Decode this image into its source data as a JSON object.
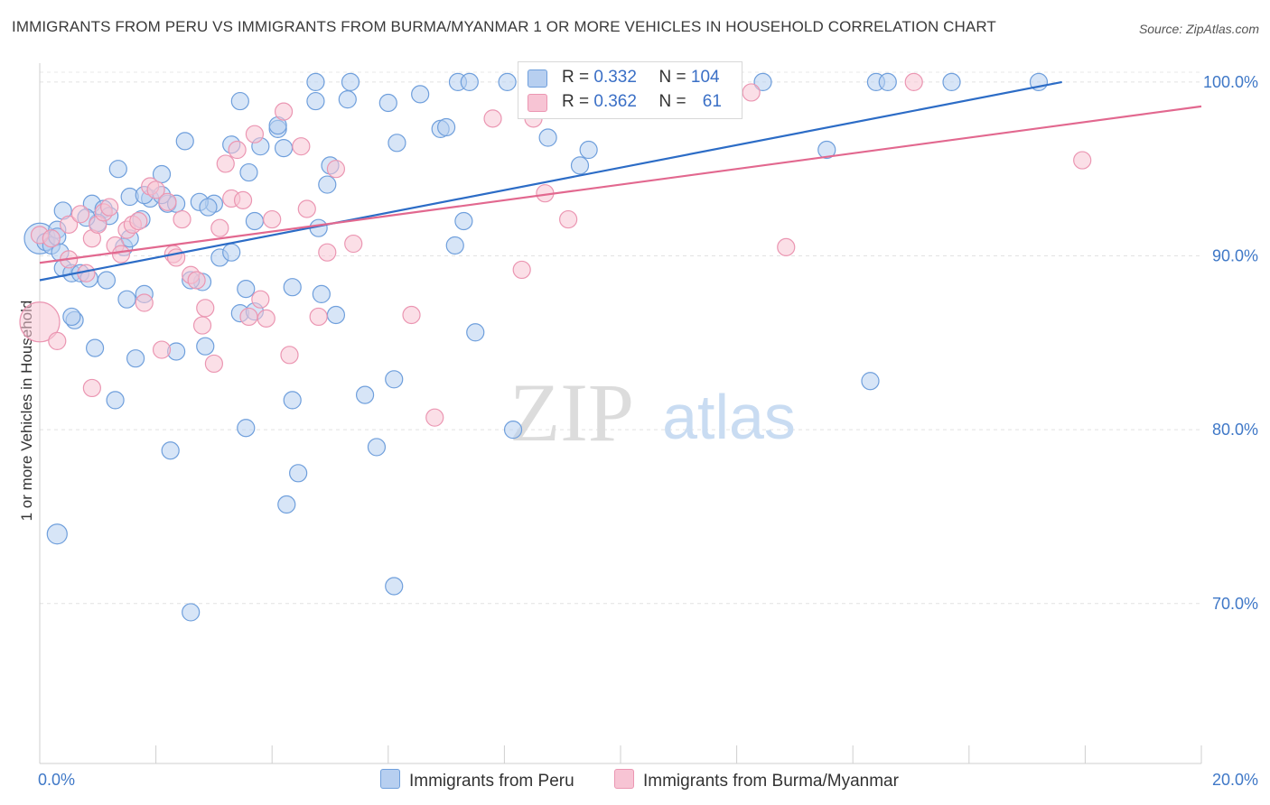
{
  "title": "IMMIGRANTS FROM PERU VS IMMIGRANTS FROM BURMA/MYANMAR 1 OR MORE VEHICLES IN HOUSEHOLD CORRELATION CHART",
  "source": "Source: ZipAtlas.com",
  "watermark": {
    "zip": "ZIP",
    "atlas": "atlas"
  },
  "legend": {
    "r_label": "R =",
    "n_label": "N =",
    "peru": {
      "r": "0.332",
      "n": "104"
    },
    "burma": {
      "r": "0.362",
      "n": "61"
    }
  },
  "colors": {
    "peru_fill": "#b7cff0",
    "peru_stroke": "#6f9fdc",
    "peru_line": "#2c6cc6",
    "burma_fill": "#f7c4d4",
    "burma_stroke": "#eb96b2",
    "burma_line": "#e2688f",
    "tick_label": "#3f78c7"
  },
  "chart_data": {
    "type": "scatter",
    "title": "IMMIGRANTS FROM PERU VS IMMIGRANTS FROM BURMA/MYANMAR 1 OR MORE VEHICLES IN HOUSEHOLD CORRELATION CHART",
    "xlabel": "",
    "ylabel": "1 or more Vehicles in Household",
    "xlim": [
      0,
      20
    ],
    "ylim": [
      60.8,
      101.5
    ],
    "x_tick_labels": [
      "0.0%",
      "20.0%"
    ],
    "y_ticks": [
      70,
      80,
      90,
      100
    ],
    "y_tick_labels": [
      "70.0%",
      "80.0%",
      "90.0%",
      "100.0%"
    ],
    "grid": true,
    "legend_position": "top-center",
    "series": [
      {
        "name": "Immigrants from Peru",
        "trend": {
          "x": [
            0.0,
            17.6
          ],
          "y": [
            88.6,
            100.0
          ]
        },
        "points": [
          [
            0.0,
            91.0
          ],
          [
            0.1,
            90.8
          ],
          [
            0.2,
            90.6
          ],
          [
            0.3,
            91.5
          ],
          [
            0.3,
            91.1
          ],
          [
            0.35,
            90.2
          ],
          [
            0.4,
            89.3
          ],
          [
            0.55,
            89.0
          ],
          [
            0.7,
            89.0
          ],
          [
            0.85,
            88.7
          ],
          [
            0.4,
            92.6
          ],
          [
            0.9,
            93.0
          ],
          [
            1.1,
            92.7
          ],
          [
            1.55,
            93.4
          ],
          [
            1.9,
            93.3
          ],
          [
            2.2,
            93.0
          ],
          [
            1.2,
            92.3
          ],
          [
            1.0,
            91.9
          ],
          [
            1.8,
            93.5
          ],
          [
            2.1,
            93.5
          ],
          [
            0.6,
            86.3
          ],
          [
            0.55,
            86.5
          ],
          [
            1.15,
            88.6
          ],
          [
            1.5,
            87.5
          ],
          [
            1.8,
            87.8
          ],
          [
            2.8,
            88.5
          ],
          [
            1.45,
            90.5
          ],
          [
            2.6,
            88.6
          ],
          [
            3.1,
            89.9
          ],
          [
            3.55,
            88.1
          ],
          [
            0.3,
            74.0
          ],
          [
            1.65,
            84.1
          ],
          [
            2.85,
            84.8
          ],
          [
            1.3,
            81.7
          ],
          [
            2.25,
            78.8
          ],
          [
            3.55,
            80.1
          ],
          [
            4.35,
            81.7
          ],
          [
            4.45,
            77.5
          ],
          [
            4.25,
            75.7
          ],
          [
            5.6,
            82.0
          ],
          [
            5.8,
            79.0
          ],
          [
            6.1,
            71.0
          ],
          [
            2.6,
            69.5
          ],
          [
            0.95,
            84.7
          ],
          [
            2.35,
            84.5
          ],
          [
            3.45,
            86.7
          ],
          [
            3.7,
            86.8
          ],
          [
            4.35,
            88.2
          ],
          [
            4.85,
            87.8
          ],
          [
            5.1,
            86.6
          ],
          [
            1.35,
            95.0
          ],
          [
            2.5,
            96.6
          ],
          [
            3.3,
            96.4
          ],
          [
            3.6,
            94.8
          ],
          [
            3.8,
            96.3
          ],
          [
            3.45,
            98.9
          ],
          [
            4.1,
            97.3
          ],
          [
            4.75,
            98.9
          ],
          [
            5.0,
            95.2
          ],
          [
            4.95,
            94.1
          ],
          [
            4.2,
            96.2
          ],
          [
            5.3,
            99.0
          ],
          [
            5.35,
            100.0
          ],
          [
            6.0,
            98.8
          ],
          [
            6.15,
            96.5
          ],
          [
            6.55,
            99.3
          ],
          [
            6.9,
            97.3
          ],
          [
            7.2,
            100.0
          ],
          [
            7.0,
            97.4
          ],
          [
            8.05,
            100.0
          ],
          [
            7.4,
            100.0
          ],
          [
            8.45,
            99.0
          ],
          [
            8.75,
            96.8
          ],
          [
            9.45,
            96.1
          ],
          [
            9.3,
            95.2
          ],
          [
            10.15,
            100.0
          ],
          [
            11.4,
            100.0
          ],
          [
            12.45,
            100.0
          ],
          [
            13.55,
            96.1
          ],
          [
            14.4,
            100.0
          ],
          [
            14.6,
            100.0
          ],
          [
            15.7,
            100.0
          ],
          [
            17.2,
            100.0
          ],
          [
            4.75,
            100.0
          ],
          [
            4.1,
            97.5
          ],
          [
            3.0,
            93.0
          ],
          [
            2.75,
            93.1
          ],
          [
            3.3,
            90.2
          ],
          [
            3.7,
            92.0
          ],
          [
            4.8,
            91.6
          ],
          [
            6.1,
            82.9
          ],
          [
            7.5,
            85.6
          ],
          [
            8.15,
            80.0
          ],
          [
            9.2,
            100.0
          ],
          [
            9.4,
            100.0
          ],
          [
            14.3,
            82.8
          ],
          [
            7.3,
            92.0
          ],
          [
            7.15,
            90.6
          ],
          [
            2.1,
            94.7
          ],
          [
            2.35,
            93.0
          ],
          [
            1.55,
            91.0
          ],
          [
            2.9,
            92.8
          ],
          [
            0.8,
            92.2
          ],
          [
            1.75,
            92.1
          ]
        ]
      },
      {
        "name": "Immigrants from Burma/Myanmar",
        "trend": {
          "x": [
            0.0,
            20.0
          ],
          "y": [
            89.6,
            98.6
          ]
        },
        "points": [
          [
            0.0,
            86.2
          ],
          [
            0.0,
            91.2
          ],
          [
            0.2,
            91.0
          ],
          [
            0.3,
            85.1
          ],
          [
            0.5,
            89.8
          ],
          [
            0.5,
            91.8
          ],
          [
            0.7,
            92.4
          ],
          [
            0.8,
            89.0
          ],
          [
            0.9,
            91.0
          ],
          [
            0.9,
            82.4
          ],
          [
            1.0,
            91.8
          ],
          [
            1.1,
            92.5
          ],
          [
            1.2,
            92.8
          ],
          [
            1.3,
            90.6
          ],
          [
            1.4,
            90.1
          ],
          [
            1.5,
            91.5
          ],
          [
            1.6,
            91.8
          ],
          [
            1.7,
            92.0
          ],
          [
            1.8,
            87.3
          ],
          [
            1.9,
            94.0
          ],
          [
            2.0,
            93.8
          ],
          [
            2.1,
            84.6
          ],
          [
            2.2,
            93.1
          ],
          [
            2.3,
            90.1
          ],
          [
            2.35,
            89.9
          ],
          [
            2.45,
            92.1
          ],
          [
            2.6,
            88.9
          ],
          [
            2.7,
            88.6
          ],
          [
            2.8,
            86.0
          ],
          [
            2.85,
            87.0
          ],
          [
            3.0,
            83.8
          ],
          [
            3.1,
            91.6
          ],
          [
            3.2,
            95.3
          ],
          [
            3.3,
            93.3
          ],
          [
            3.4,
            96.1
          ],
          [
            3.5,
            93.2
          ],
          [
            3.6,
            86.5
          ],
          [
            3.7,
            97.0
          ],
          [
            3.8,
            87.5
          ],
          [
            3.9,
            86.4
          ],
          [
            4.0,
            92.1
          ],
          [
            4.2,
            98.3
          ],
          [
            4.3,
            84.3
          ],
          [
            4.5,
            96.3
          ],
          [
            4.6,
            92.7
          ],
          [
            4.8,
            86.5
          ],
          [
            4.95,
            90.2
          ],
          [
            5.1,
            95.0
          ],
          [
            5.4,
            90.7
          ],
          [
            6.4,
            86.6
          ],
          [
            6.8,
            80.7
          ],
          [
            7.8,
            97.9
          ],
          [
            8.3,
            89.2
          ],
          [
            8.5,
            97.9
          ],
          [
            8.65,
            99.6
          ],
          [
            8.7,
            93.6
          ],
          [
            9.1,
            92.1
          ],
          [
            12.25,
            99.4
          ],
          [
            12.85,
            90.5
          ],
          [
            15.05,
            100.0
          ],
          [
            17.95,
            95.5
          ]
        ]
      }
    ]
  }
}
